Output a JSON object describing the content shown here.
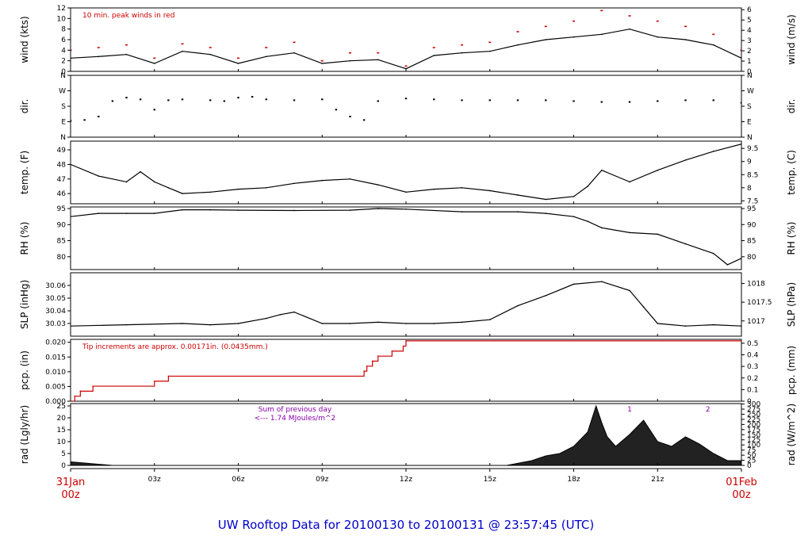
{
  "title": "UW Rooftop Data for 20100130  to  20100131 @ 23:57:45  (UTC)",
  "x_axis": {
    "start_label": [
      "31Jan",
      "00z"
    ],
    "end_label": [
      "01Feb",
      "00z"
    ],
    "ticks": [
      "03z",
      "06z",
      "09z",
      "12z",
      "15z",
      "18z",
      "21z"
    ],
    "range_hours": [
      0,
      24
    ]
  },
  "chart_data": [
    {
      "type": "line",
      "name": "wind",
      "ylabel": "wind (kts)",
      "ylabel_right": "wind (m/s)",
      "ylim": [
        0,
        12
      ],
      "yticks": [
        "0",
        "2",
        "4",
        "6",
        "8",
        "10",
        "12"
      ],
      "yticks_right": [
        "0",
        "1",
        "2",
        "3",
        "4",
        "5",
        "6"
      ],
      "annotation": "10 min. peak winds in red",
      "line_color": "#000000",
      "peak_color": "#cc0000",
      "x_hours": [
        0,
        1,
        2,
        3,
        4,
        5,
        6,
        7,
        8,
        9,
        10,
        11,
        12,
        13,
        14,
        15,
        16,
        17,
        18,
        19,
        20,
        21,
        22,
        23,
        24
      ],
      "values": [
        2.5,
        2.8,
        3.2,
        1.5,
        3.8,
        3.2,
        1.5,
        2.8,
        3.5,
        1.5,
        2.0,
        2.2,
        0.5,
        3.0,
        3.5,
        3.8,
        5.0,
        6.0,
        6.5,
        7.0,
        8.0,
        6.5,
        6.0,
        5.0,
        2.5
      ],
      "peaks": [
        4.0,
        4.5,
        5.0,
        2.5,
        5.2,
        4.5,
        2.5,
        4.5,
        5.5,
        2.0,
        3.5,
        3.5,
        1.0,
        4.5,
        5.0,
        5.5,
        7.5,
        8.5,
        9.5,
        11.5,
        10.5,
        9.5,
        8.5,
        7.0,
        4.0
      ]
    },
    {
      "type": "scatter",
      "name": "dir",
      "ylabel": "dir.",
      "ylabel_right": "dir.",
      "ylim": [
        0,
        360
      ],
      "yticks": [
        "N",
        "E",
        "S",
        "W",
        "N"
      ],
      "yticks_right": [
        "N",
        "E",
        "S",
        "W",
        "N"
      ],
      "x_hours": [
        0,
        0.5,
        1,
        1.5,
        2,
        2.5,
        3,
        3.5,
        4,
        5,
        5.5,
        6,
        6.5,
        7,
        8,
        9,
        9.5,
        10,
        10.5,
        11,
        12,
        13,
        14,
        15,
        16,
        17,
        18,
        19,
        20,
        21,
        22,
        23,
        24
      ],
      "values": [
        95,
        100,
        120,
        210,
        230,
        220,
        160,
        215,
        220,
        215,
        210,
        230,
        235,
        220,
        215,
        220,
        160,
        120,
        100,
        210,
        225,
        220,
        215,
        215,
        215,
        215,
        210,
        205,
        205,
        210,
        215,
        215,
        200
      ]
    },
    {
      "type": "line",
      "name": "temp",
      "ylabel": "temp. (F)",
      "ylabel_right": "temp. (C)",
      "ylim": [
        45.3,
        49.6
      ],
      "yticks": [
        "46",
        "47",
        "48",
        "49"
      ],
      "yticks_right": [
        "7.5",
        "8",
        "8.5",
        "9",
        "9.5"
      ],
      "x_hours": [
        0,
        1,
        2,
        2.5,
        3,
        3.5,
        4,
        5,
        6,
        7,
        8,
        9,
        10,
        11,
        12,
        13,
        14,
        15,
        16,
        17,
        18,
        18.5,
        19,
        20,
        21,
        22,
        23,
        24
      ],
      "values": [
        48.0,
        47.2,
        46.8,
        47.5,
        46.8,
        46.4,
        46.0,
        46.1,
        46.3,
        46.4,
        46.7,
        46.9,
        47.0,
        46.6,
        46.1,
        46.3,
        46.4,
        46.2,
        45.9,
        45.6,
        45.8,
        46.5,
        47.6,
        46.8,
        47.6,
        48.3,
        48.9,
        49.4
      ]
    },
    {
      "type": "line",
      "name": "rh",
      "ylabel": "RH (%)",
      "ylabel_right": "RH (%)",
      "ylim": [
        76,
        95.5
      ],
      "yticks": [
        "80",
        "85",
        "90",
        "95"
      ],
      "yticks_right": [
        "80",
        "85",
        "90",
        "95"
      ],
      "x_hours": [
        0,
        1,
        2,
        3,
        4,
        5,
        6,
        8,
        10,
        11,
        12,
        14,
        16,
        17,
        18,
        18.5,
        19,
        20,
        21,
        22,
        23,
        23.5,
        24
      ],
      "values": [
        92.5,
        93.5,
        93.5,
        93.5,
        94.6,
        94.6,
        94.5,
        94.4,
        94.5,
        95.0,
        94.8,
        94.0,
        94.0,
        93.5,
        92.5,
        91.0,
        89.0,
        87.5,
        87.0,
        84.0,
        81.0,
        77.5,
        79.5
      ]
    },
    {
      "type": "line",
      "name": "slp",
      "ylabel": "SLP (inHg)",
      "ylabel_right": "SLP (hPa)",
      "ylim": [
        30.02,
        30.07
      ],
      "yticks": [
        "30.03",
        "30.04",
        "30.05",
        "30.06"
      ],
      "yticks_right": [
        "1017",
        "1017.5",
        "1018"
      ],
      "x_hours": [
        0,
        2,
        4,
        5,
        6,
        7,
        7.5,
        8,
        9,
        10,
        11,
        12,
        13,
        14,
        15,
        16,
        17,
        18,
        19,
        20,
        20.5,
        21,
        22,
        23,
        24
      ],
      "values": [
        30.028,
        30.029,
        30.03,
        30.029,
        30.03,
        30.034,
        30.037,
        30.039,
        30.03,
        30.03,
        30.031,
        30.03,
        30.03,
        30.031,
        30.033,
        30.044,
        30.052,
        30.061,
        30.063,
        30.056,
        30.043,
        30.03,
        30.028,
        30.029,
        30.028
      ]
    },
    {
      "type": "line",
      "name": "pcp",
      "ylabel": "pcp. (in)",
      "ylabel_right": "pcp. (mm)",
      "ylim": [
        0,
        0.021
      ],
      "yticks": [
        "0.000",
        "0.005",
        "0.010",
        "0.015",
        "0.020"
      ],
      "yticks_right": [
        "0",
        "0.1",
        "0.2",
        "0.3",
        "0.4",
        "0.5"
      ],
      "annotation": "Tip increments are approx. 0.00171in. (0.0435mm.)",
      "line_color": "#cc0000",
      "x_hours": [
        0,
        0.15,
        0.35,
        0.8,
        3.0,
        3.5,
        10.5,
        10.6,
        10.8,
        11.0,
        11.5,
        11.9,
        12.0,
        24
      ],
      "values": [
        0.0,
        0.0017,
        0.0034,
        0.0051,
        0.0068,
        0.0085,
        0.0102,
        0.0119,
        0.0136,
        0.0153,
        0.017,
        0.0187,
        0.0205,
        0.0205
      ]
    },
    {
      "type": "area",
      "name": "rad",
      "ylabel": "rad (Lgly/hr)",
      "ylabel_right": "rad (W/m^2)",
      "ylim": [
        0,
        26
      ],
      "yticks": [
        "0",
        "5",
        "10",
        "15",
        "20",
        "25"
      ],
      "yticks_right": [
        "0",
        "25",
        "50",
        "75",
        "100",
        "125",
        "150",
        "175",
        "200",
        "225",
        "250",
        "275",
        "300"
      ],
      "annotation_lines": [
        "Sum of previous day",
        "<--- 1.74 MJoules/m^2"
      ],
      "peak_labels": [
        {
          "x": 20.0,
          "label": "1"
        },
        {
          "x": 22.8,
          "label": "2"
        }
      ],
      "x_hours": [
        0,
        0.5,
        1.5,
        15.6,
        16.5,
        17.0,
        17.5,
        18.0,
        18.5,
        18.8,
        19.0,
        19.2,
        19.5,
        20.0,
        20.5,
        21.0,
        21.5,
        22.0,
        22.5,
        23.0,
        23.5,
        24.0
      ],
      "values": [
        1.5,
        1.0,
        0.0,
        0.0,
        2.0,
        4.0,
        5.0,
        8.0,
        14.0,
        25.0,
        18.0,
        12.0,
        8.0,
        13.0,
        19.0,
        10.0,
        8.0,
        12.0,
        9.0,
        5.0,
        2.0,
        2.0
      ]
    }
  ]
}
